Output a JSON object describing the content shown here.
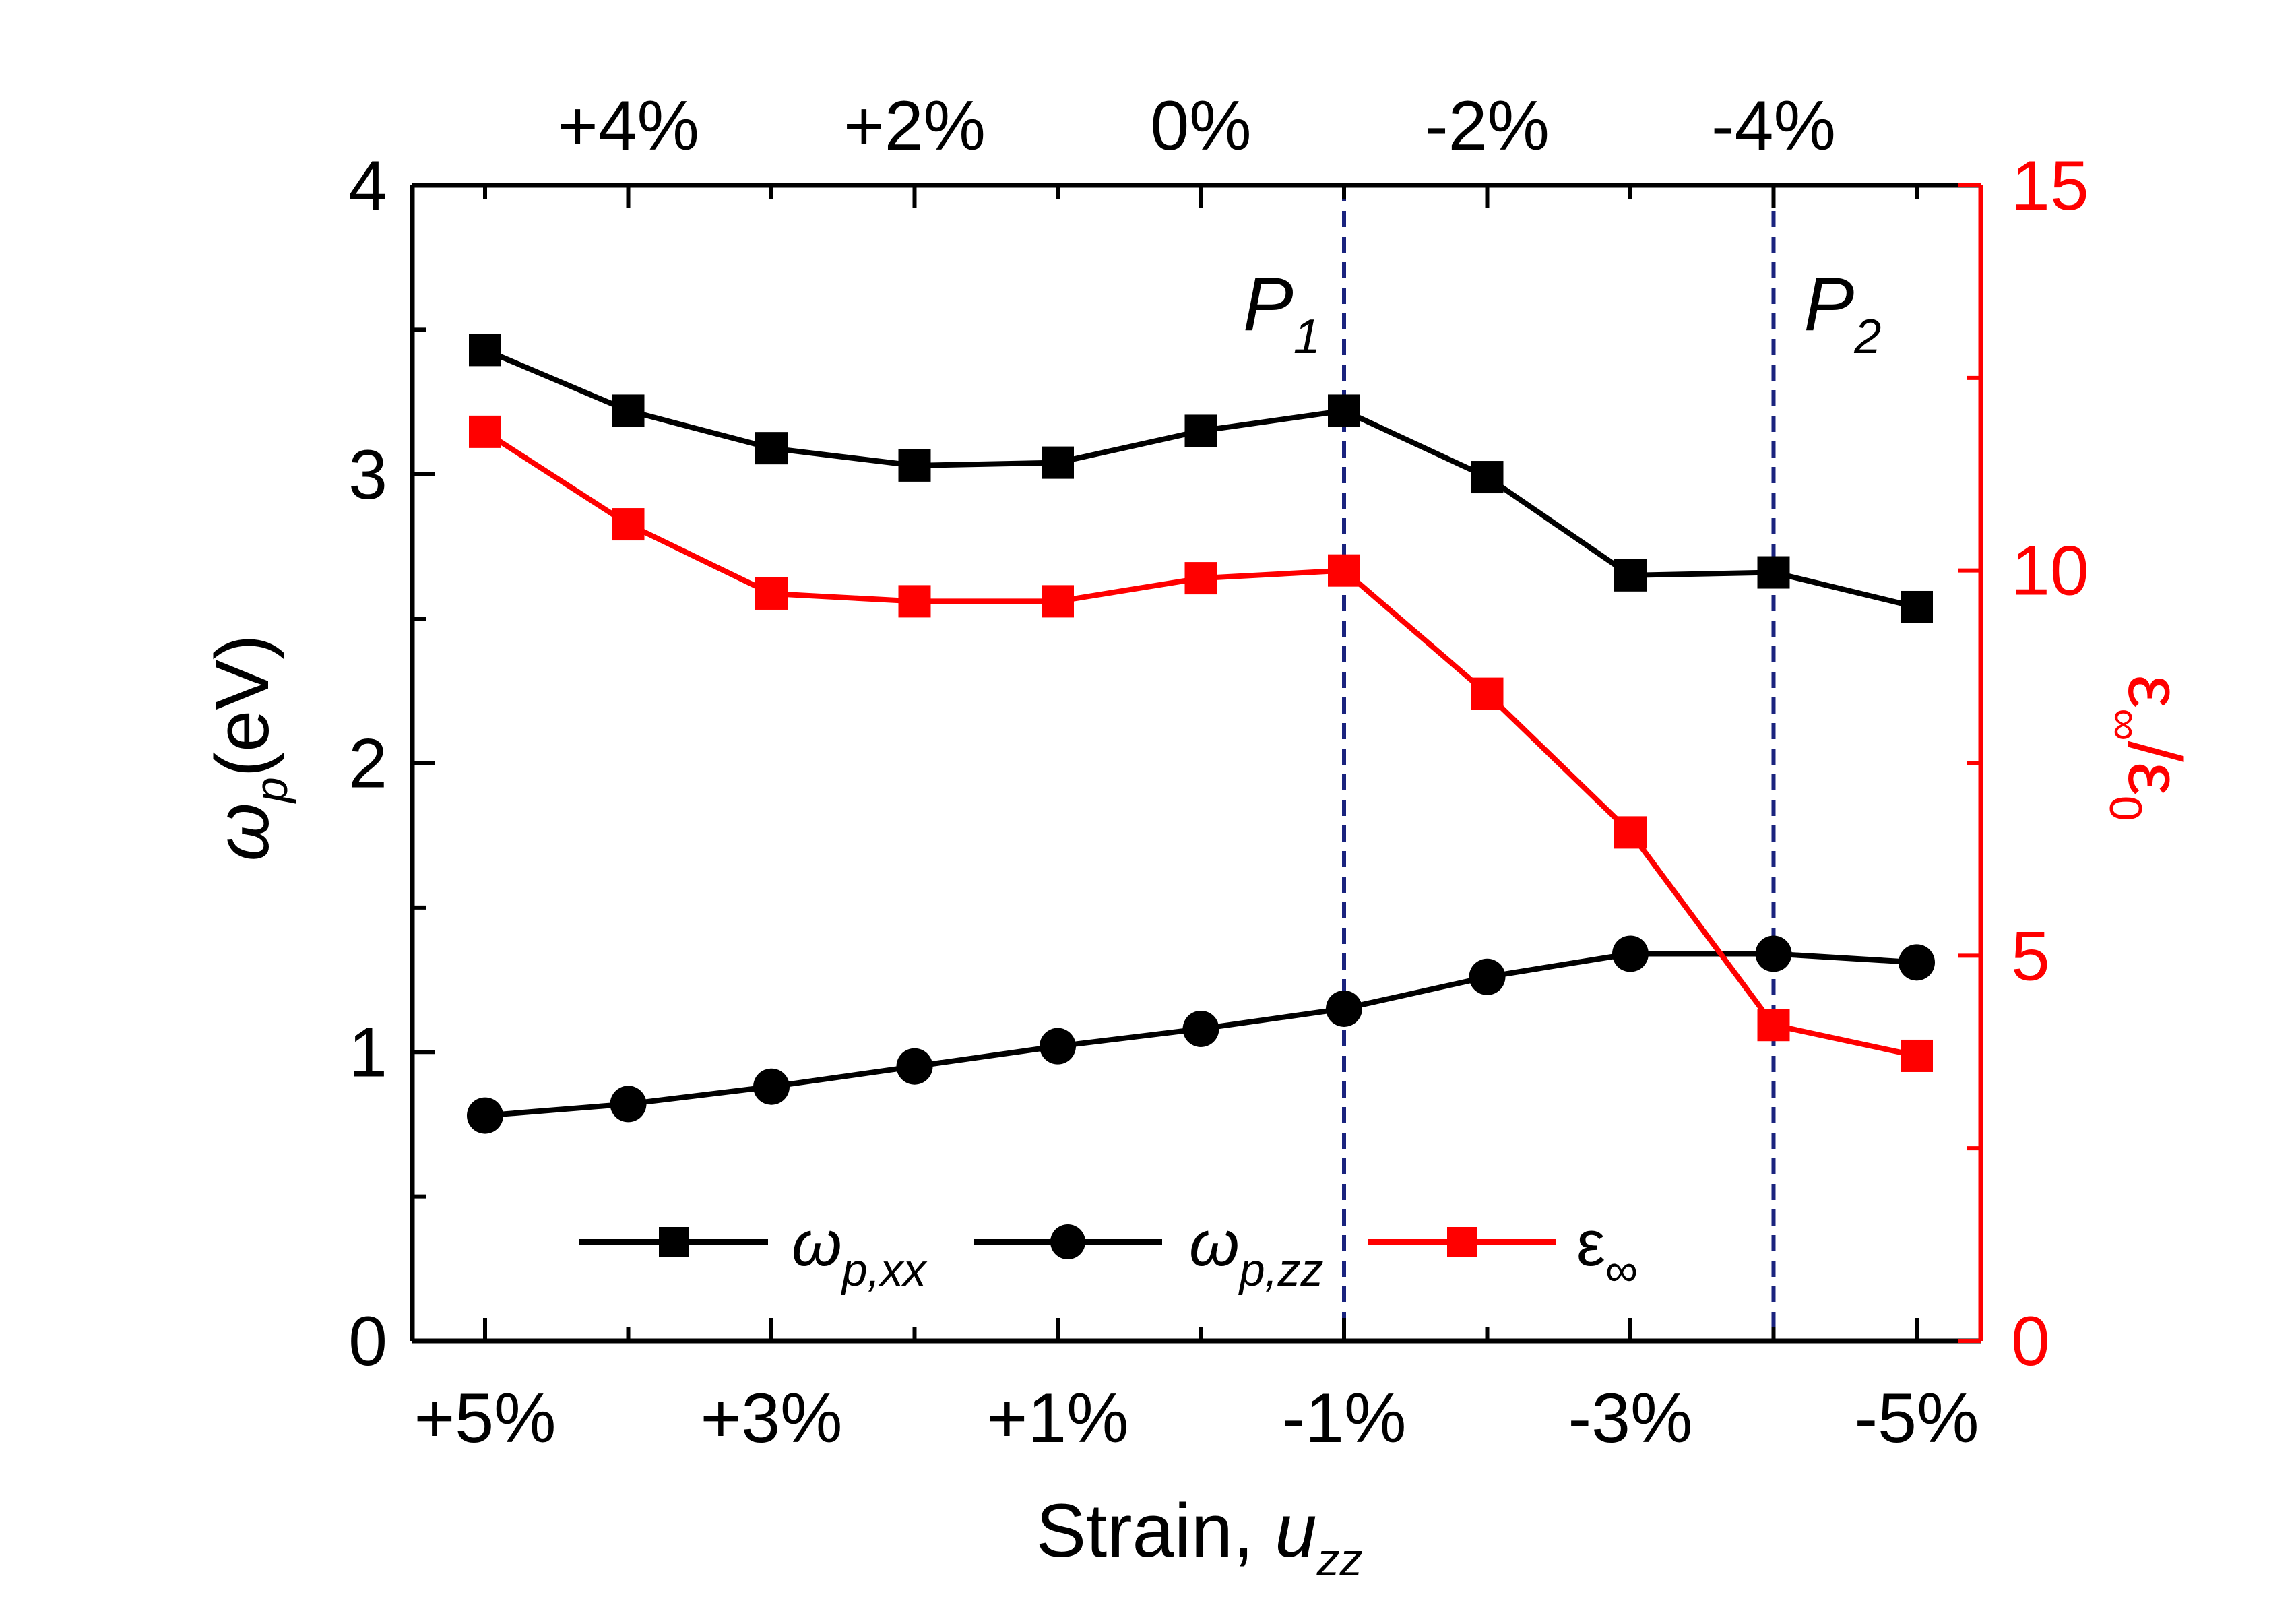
{
  "chart_data": {
    "type": "line",
    "x_categories": [
      "+5%",
      "+4%",
      "+3%",
      "+2%",
      "+1%",
      "0%",
      "-1%",
      "-2%",
      "-3%",
      "-4%",
      "-5%"
    ],
    "x_bottom_tick_labels": [
      "+5%",
      "+3%",
      "+1%",
      "-1%",
      "-3%",
      "-5%"
    ],
    "x_top_tick_labels": [
      "+4%",
      "+2%",
      "0%",
      "-2%",
      "-4%"
    ],
    "xlabel": {
      "main": "Strain, ",
      "var": "u",
      "sub": "zz"
    },
    "ylabel_left": {
      "var": "ω",
      "sub": "p",
      "unit": "(eV)"
    },
    "ylabel_right": {
      "var": "ε",
      "sub": "∞",
      "rest": "/ε",
      "sub2": "0"
    },
    "ylim_left": [
      0,
      4
    ],
    "ylim_right": [
      0,
      15
    ],
    "y_left_tick_labels": [
      "0",
      "1",
      "2",
      "3",
      "4"
    ],
    "y_right_tick_labels": [
      "0",
      "5",
      "10",
      "15"
    ],
    "series": [
      {
        "name": "ω_p,xx",
        "axis": "left",
        "marker": "square",
        "color": "#000000",
        "values": [
          3.43,
          3.22,
          3.09,
          3.03,
          3.04,
          3.15,
          3.22,
          2.99,
          2.65,
          2.66,
          2.54
        ]
      },
      {
        "name": "ω_p,zz",
        "axis": "left",
        "marker": "circle",
        "color": "#000000",
        "values": [
          0.78,
          0.82,
          0.88,
          0.95,
          1.02,
          1.08,
          1.15,
          1.26,
          1.34,
          1.34,
          1.31
        ]
      },
      {
        "name": "ε_∞",
        "axis": "right",
        "marker": "square",
        "color": "#ff0000",
        "values": [
          11.8,
          10.6,
          9.7,
          9.6,
          9.6,
          9.9,
          10.0,
          8.4,
          6.6,
          4.1,
          3.7
        ]
      }
    ],
    "legend": [
      {
        "var": "ω",
        "sub": "p,xx"
      },
      {
        "var": "ω",
        "sub": "p,zz"
      },
      {
        "var": "ε",
        "sub": "∞"
      }
    ],
    "vlines": [
      {
        "x": "-1%",
        "label": "P",
        "sub": "1"
      },
      {
        "x": "-4%",
        "label": "P",
        "sub": "2"
      }
    ],
    "right_axis_color": "#ff0000",
    "vline_color": "#1a237e"
  }
}
